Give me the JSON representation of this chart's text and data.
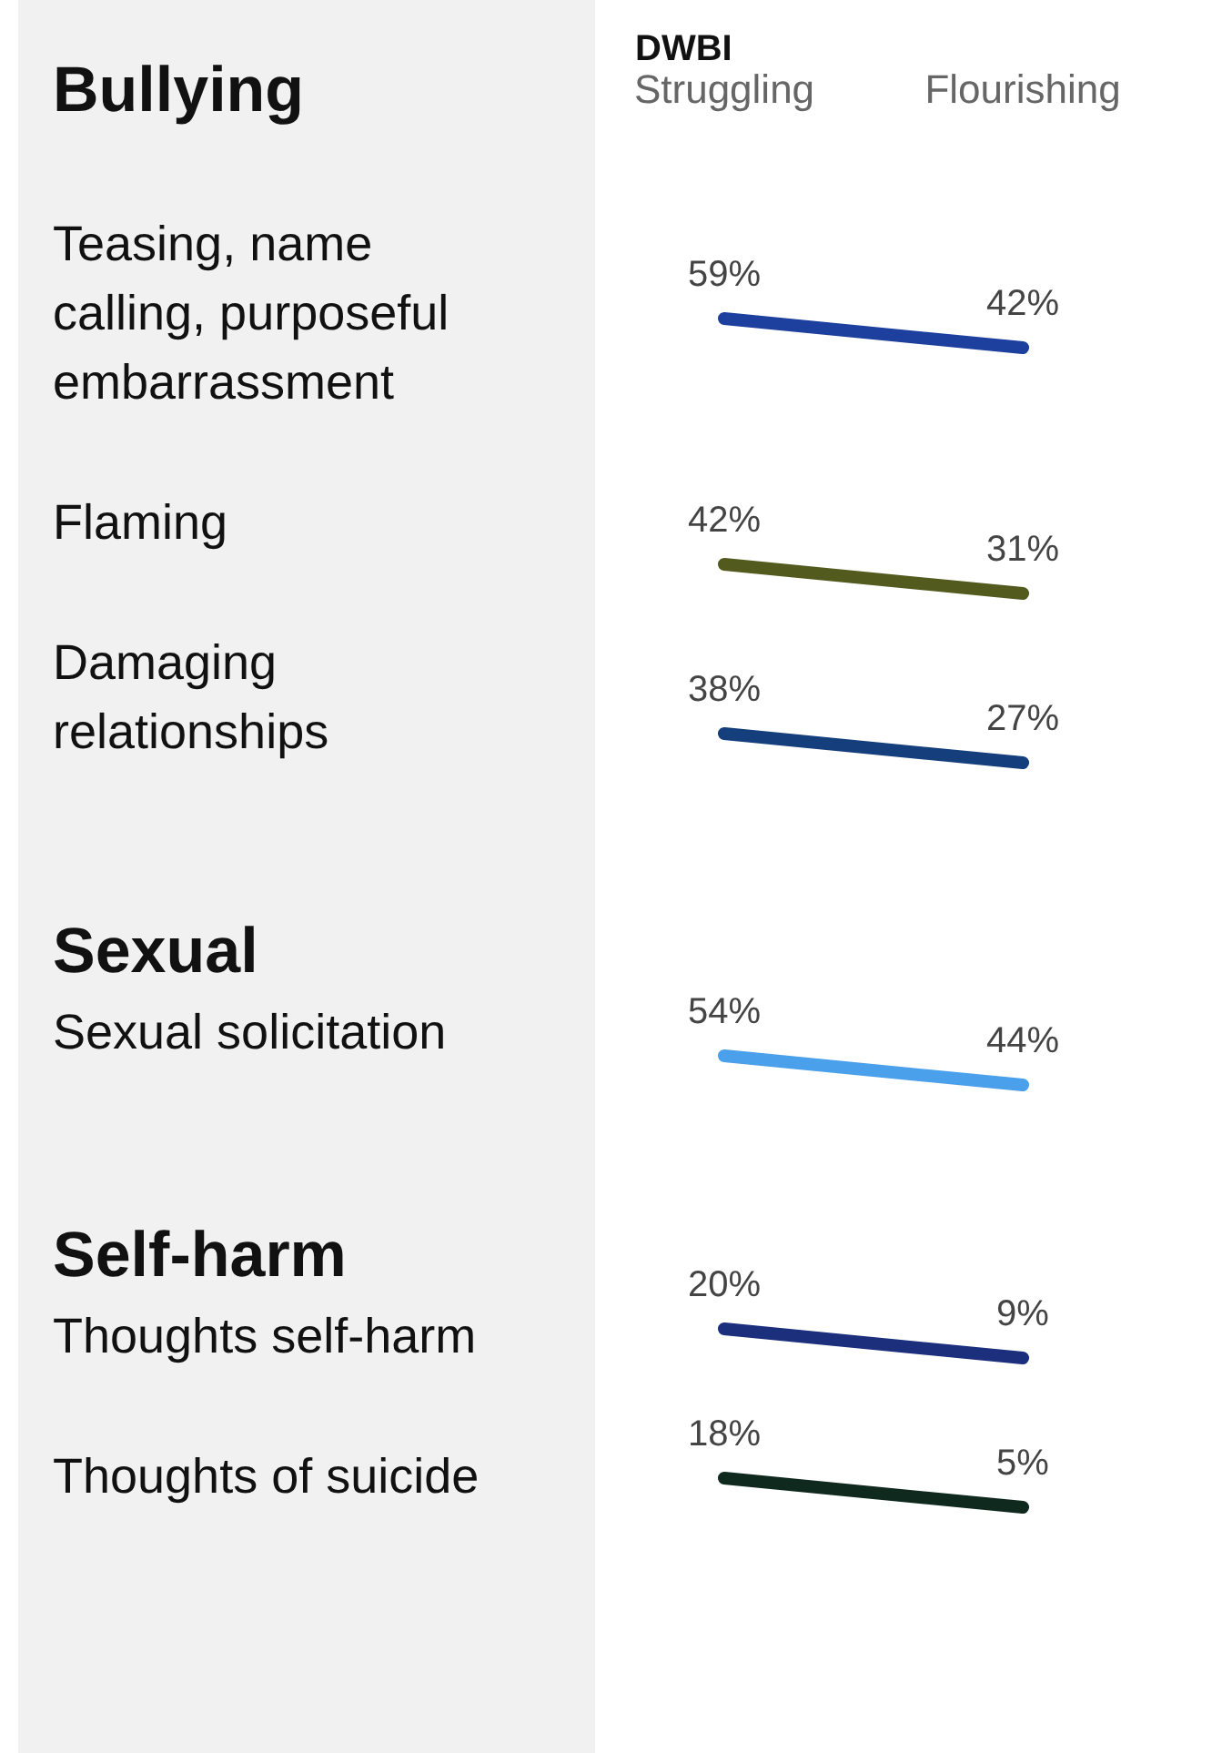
{
  "chart_data": [
    {
      "type": "line",
      "title": "Bullying",
      "xlabel": "DWBI",
      "ylabel": "Teasing, name calling, purposeful embarrassment",
      "categories": [
        "Struggling",
        "Flourishing"
      ],
      "values": [
        59,
        42
      ],
      "value_labels": [
        "59%",
        "42%"
      ],
      "color": "#1d3f9e"
    },
    {
      "type": "line",
      "ylabel": "Flaming",
      "values": [
        42,
        31
      ],
      "value_labels": [
        "42%",
        "31%"
      ],
      "color": "#535a1e"
    },
    {
      "type": "line",
      "ylabel": "Damaging relationships",
      "values": [
        38,
        27
      ],
      "value_labels": [
        "38%",
        "27%"
      ],
      "color": "#143f7c"
    },
    {
      "type": "line",
      "title": "Sexual",
      "ylabel": "Sexual solicitation",
      "values": [
        54,
        44
      ],
      "value_labels": [
        "54%",
        "44%"
      ],
      "color": "#4aa0ea"
    },
    {
      "type": "line",
      "title": "Self-harm",
      "ylabel": "Thoughts self-harm",
      "values": [
        20,
        9
      ],
      "value_labels": [
        "20%",
        "9%"
      ],
      "color": "#1b2f7c"
    },
    {
      "type": "line",
      "ylabel": "Thoughts of suicide",
      "values": [
        18,
        5
      ],
      "value_labels": [
        "18%",
        "5%"
      ],
      "color": "#10291f"
    }
  ]
}
